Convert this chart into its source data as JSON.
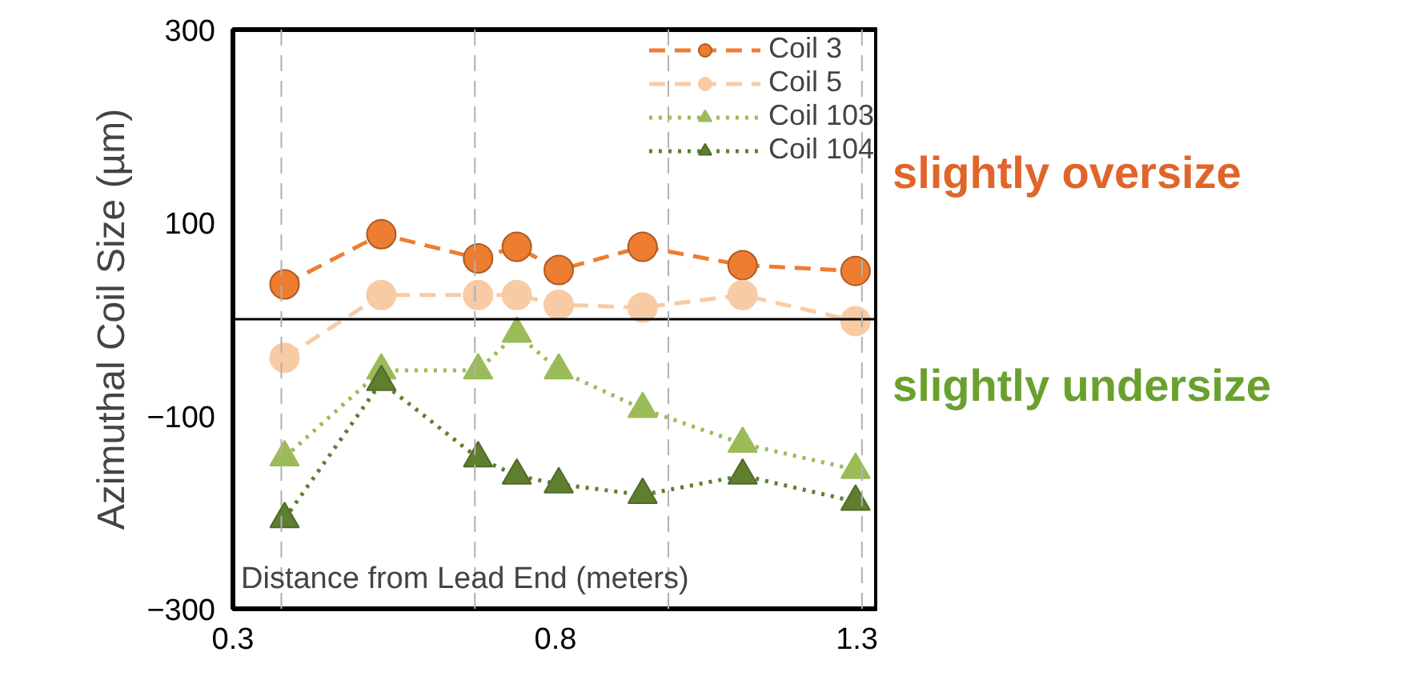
{
  "chart_data": {
    "type": "line",
    "xlabel": "Distance from Lead End (meters)",
    "ylabel": "Azimuthal Coil Size (µm)",
    "x": [
      0.38,
      0.53,
      0.68,
      0.74,
      0.805,
      0.935,
      1.09,
      1.265
    ],
    "xlim": [
      0.3,
      1.3
    ],
    "xticks": [
      0.3,
      0.8,
      1.3
    ],
    "ylim": [
      -300,
      300
    ],
    "yticks": [
      -300,
      -100,
      100,
      300
    ],
    "series": [
      {
        "name": "Coil 3",
        "color": "#ed7d31",
        "values": [
          36,
          88,
          63,
          75,
          51,
          75,
          56,
          50
        ],
        "marker": "circle",
        "line_style": "dashed"
      },
      {
        "name": "Coil 5",
        "color": "#f8cba5",
        "values": [
          -40,
          25,
          25,
          25,
          15,
          12,
          25,
          -2
        ],
        "marker": "circle",
        "line_style": "dashed"
      },
      {
        "name": "Coil 103",
        "color": "#9bbb59",
        "values": [
          -143,
          -53,
          -53,
          -15,
          -53,
          -93,
          -129,
          -156
        ],
        "marker": "triangle",
        "line_style": "dotted"
      },
      {
        "name": "Coil 104",
        "color": "#5f7f2f",
        "values": [
          -207,
          -65,
          -144,
          -162,
          -171,
          -182,
          -162,
          -189
        ],
        "marker": "triangle",
        "line_style": "dotted"
      }
    ],
    "ref_lines": [
      {
        "axis": "y",
        "value": 0,
        "color": "#000000",
        "line_style": "solid"
      },
      {
        "axis": "x",
        "value": 0.375,
        "color": "#b0b0b0",
        "line_style": "dashed"
      },
      {
        "axis": "x",
        "value": 0.675,
        "color": "#b0b0b0",
        "line_style": "dashed"
      },
      {
        "axis": "x",
        "value": 0.975,
        "color": "#b0b0b0",
        "line_style": "dashed"
      },
      {
        "axis": "x",
        "value": 1.275,
        "color": "#b0b0b0",
        "line_style": "dashed"
      }
    ],
    "annotations": [
      "slightly oversize",
      "slightly undersize"
    ],
    "legend": "top right",
    "grid": false
  }
}
